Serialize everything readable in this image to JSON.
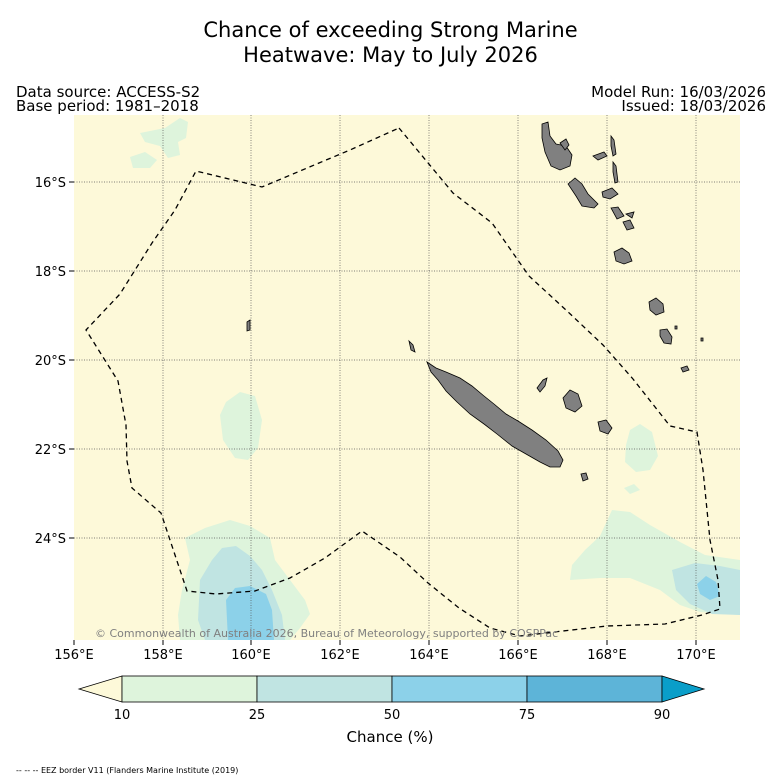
{
  "title": {
    "line1": "Chance of exceeding Strong Marine",
    "line2": "Heatwave: May to July 2026"
  },
  "header": {
    "data_source": "Data source: ACCESS-S2",
    "base_period": "Base period: 1981–2018",
    "model_run": "Model Run: 16/03/2026",
    "issued": "Issued: 18/03/2026"
  },
  "map": {
    "lon_range": [
      156,
      171
    ],
    "lat_range": [
      -26.1,
      -14.3
    ],
    "x_ticks": [
      "156°E",
      "158°E",
      "160°E",
      "162°E",
      "164°E",
      "166°E",
      "168°E",
      "170°E"
    ],
    "y_ticks": [
      "16°S",
      "18°S",
      "20°S",
      "22°S",
      "24°S"
    ],
    "credit": "© Commonwealth of Australia 2026, Bureau of Meteorology, supported by COSPPac",
    "background_color": "#fdf9d9",
    "land_color": "#808080"
  },
  "colorbar": {
    "title": "Chance (%)",
    "ticks": [
      "10",
      "25",
      "50",
      "75",
      "90"
    ],
    "colors": [
      "#fdf9d9",
      "#def4dc",
      "#c0e4e2",
      "#8cd1e9",
      "#5db4d8",
      "#0a9ec9"
    ]
  },
  "footer": {
    "eez_note": "-- -- -- EEZ border V11 (Flanders Marine Institute (2019)"
  }
}
